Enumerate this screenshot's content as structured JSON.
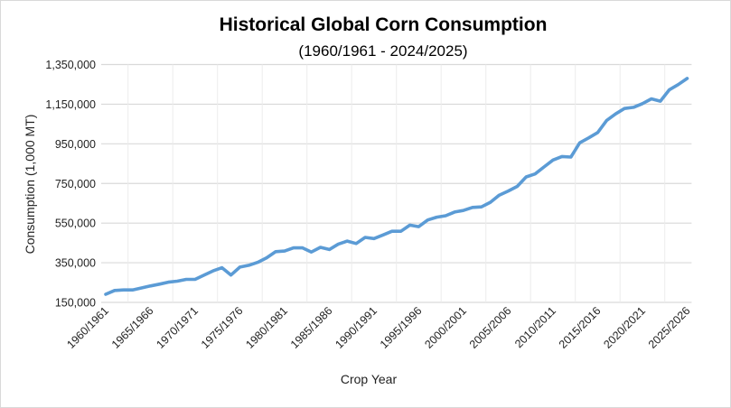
{
  "chart_data": {
    "type": "line",
    "title": "Historical Global Corn Consumption",
    "subtitle": "(1960/1961 - 2024/2025)",
    "xlabel": "Crop Year",
    "ylabel": "Consumption (1,000 MT)",
    "ylim": [
      150000,
      1350000
    ],
    "yticks": [
      "150,000",
      "350,000",
      "550,000",
      "750,000",
      "950,000",
      "1,150,000",
      "1,350,000"
    ],
    "xtick_labels": [
      "1960/1961",
      "1965/1966",
      "1970/1971",
      "1975/1976",
      "1980/1981",
      "1985/1986",
      "1990/1991",
      "1995/1996",
      "2000/2001",
      "2005/2006",
      "2010/2011",
      "2015/2016",
      "2020/2021",
      "2025/2026"
    ],
    "grid": true,
    "line_color": "#5b9bd5",
    "series": [
      {
        "start_year": 1960,
        "values": [
          191000,
          210000,
          213000,
          213000,
          223000,
          233000,
          242000,
          252000,
          257000,
          266000,
          266000,
          288000,
          309000,
          325000,
          288000,
          328000,
          337000,
          352000,
          375000,
          406000,
          409000,
          425000,
          425000,
          404000,
          428000,
          417000,
          444000,
          459000,
          447000,
          478000,
          472000,
          490000,
          509000,
          509000,
          540000,
          532000,
          566000,
          580000,
          587000,
          606000,
          614000,
          629000,
          632000,
          655000,
          691000,
          712000,
          735000,
          783000,
          798000,
          833000,
          868000,
          886000,
          883000,
          955000,
          980000,
          1007000,
          1068000,
          1101000,
          1128000,
          1134000,
          1153000,
          1177000,
          1165000,
          1222000,
          1249000,
          1280000
        ]
      }
    ]
  }
}
